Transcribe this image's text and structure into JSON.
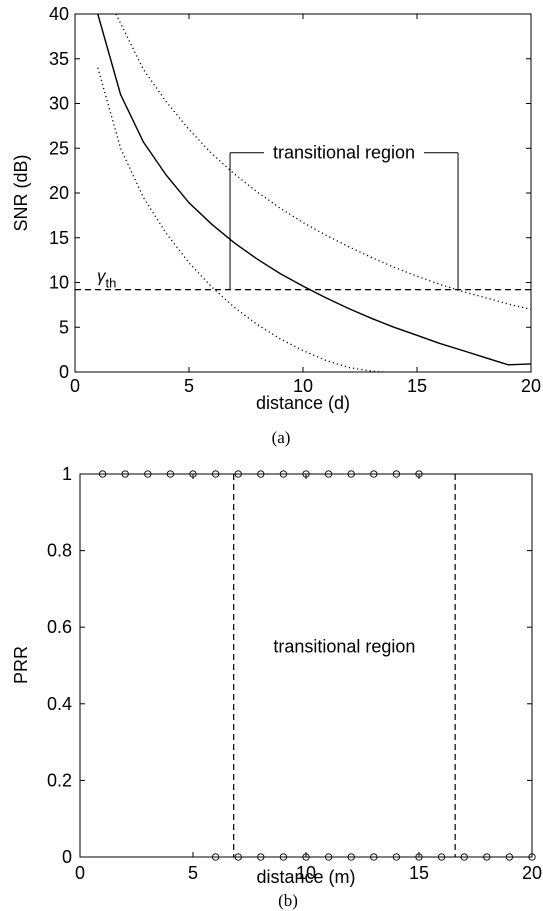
{
  "chart_data": [
    {
      "type": "line",
      "xlabel": "distance (d)",
      "ylabel": "SNR (dB)",
      "xlim": [
        0,
        20
      ],
      "ylim": [
        0,
        40
      ],
      "xticks": [
        0,
        5,
        10,
        15,
        20
      ],
      "yticks": [
        0,
        5,
        10,
        15,
        20,
        25,
        30,
        35,
        40
      ],
      "caption": "(a)",
      "series": [
        {
          "style": "solid",
          "x": [
            1,
            2,
            3,
            4,
            5,
            6,
            7,
            8,
            9,
            10,
            11,
            12,
            13,
            14,
            15,
            16,
            17,
            18,
            19,
            20
          ],
          "values": [
            40,
            31,
            25.7,
            22,
            18.9,
            16.5,
            14.4,
            12.6,
            11,
            9.6,
            8.3,
            7.1,
            6,
            5,
            4.1,
            3.2,
            2.4,
            1.6,
            0.8,
            0.9
          ]
        },
        {
          "style": "dotted",
          "x": [
            1.8,
            3,
            4,
            5,
            6,
            7,
            8,
            9,
            10,
            11,
            12,
            13,
            14,
            15,
            16,
            17,
            18,
            19,
            20
          ],
          "values": [
            40,
            33.8,
            30.2,
            27.1,
            24.4,
            22.1,
            20.1,
            18.3,
            16.7,
            15.3,
            14,
            12.8,
            11.7,
            10.7,
            9.8,
            9,
            8.3,
            7.6,
            7
          ]
        },
        {
          "style": "dotted",
          "x": [
            1,
            2,
            3,
            4,
            5,
            6,
            7,
            8,
            9,
            10,
            11,
            12,
            13,
            13.5
          ],
          "values": [
            34,
            25,
            19.5,
            15.5,
            12.2,
            9.5,
            7.2,
            5.3,
            3.7,
            2.4,
            1.3,
            0.5,
            0.1,
            0
          ]
        }
      ],
      "threshold": {
        "value": 9.2,
        "style": "dashed",
        "label": "γ",
        "label_sub": "th"
      },
      "annotation": {
        "text": "transitional region",
        "x_start": 6.8,
        "x_end": 16.8,
        "y": 24.5
      }
    },
    {
      "type": "scatter",
      "xlabel": "distance (m)",
      "ylabel": "PRR",
      "xlim": [
        0,
        20
      ],
      "ylim": [
        0,
        1
      ],
      "xticks": [
        0,
        5,
        10,
        15,
        20
      ],
      "yticks": [
        0,
        0.2,
        0.4,
        0.6,
        0.8,
        1
      ],
      "caption": "(b)",
      "points_high": {
        "y": 1,
        "x": [
          1,
          2,
          3,
          4,
          5,
          6,
          7,
          8,
          9,
          10,
          11,
          12,
          13,
          14,
          15
        ]
      },
      "points_low": {
        "y": 0,
        "x": [
          6,
          7,
          8,
          9,
          10,
          11,
          12,
          13,
          14,
          15,
          16,
          17,
          18,
          19,
          20
        ]
      },
      "boundaries": [
        6.8,
        16.6
      ],
      "annotation": {
        "text": "transitional region",
        "x": 11.7,
        "y": 0.55
      }
    }
  ]
}
